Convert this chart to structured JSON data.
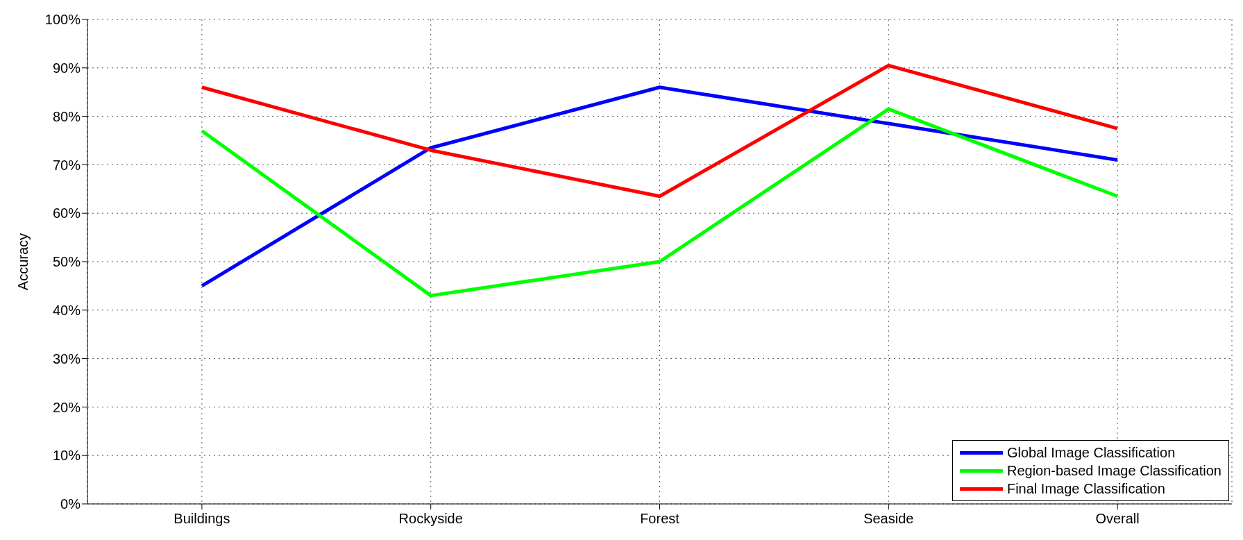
{
  "chart_data": {
    "type": "line",
    "ylabel": "Accuracy",
    "categories": [
      "Buildings",
      "Rockyside",
      "Forest",
      "Seaside",
      "Overall"
    ],
    "series": [
      {
        "name": "Global Image Classification",
        "color": "#0000ff",
        "values": [
          45,
          73.5,
          86,
          78.5,
          71
        ]
      },
      {
        "name": "Region-based Image Classification",
        "color": "#00ff00",
        "values": [
          77,
          43,
          50,
          81.5,
          63.5
        ]
      },
      {
        "name": "Final Image Classification",
        "color": "#ff0000",
        "values": [
          86,
          73,
          63.5,
          90.5,
          77.5
        ]
      }
    ],
    "ylim": [
      0,
      100
    ],
    "yticks": [
      {
        "value": 0,
        "label": "0%"
      },
      {
        "value": 10,
        "label": "10%"
      },
      {
        "value": 20,
        "label": "20%"
      },
      {
        "value": 30,
        "label": "30%"
      },
      {
        "value": 40,
        "label": "40%"
      },
      {
        "value": 50,
        "label": "50%"
      },
      {
        "value": 60,
        "label": "60%"
      },
      {
        "value": 70,
        "label": "70%"
      },
      {
        "value": 80,
        "label": "80%"
      },
      {
        "value": 90,
        "label": "90%"
      },
      {
        "value": 100,
        "label": "100%"
      }
    ],
    "grid": true,
    "legend": "bottom right",
    "marker": "none",
    "line_style": "solid"
  }
}
